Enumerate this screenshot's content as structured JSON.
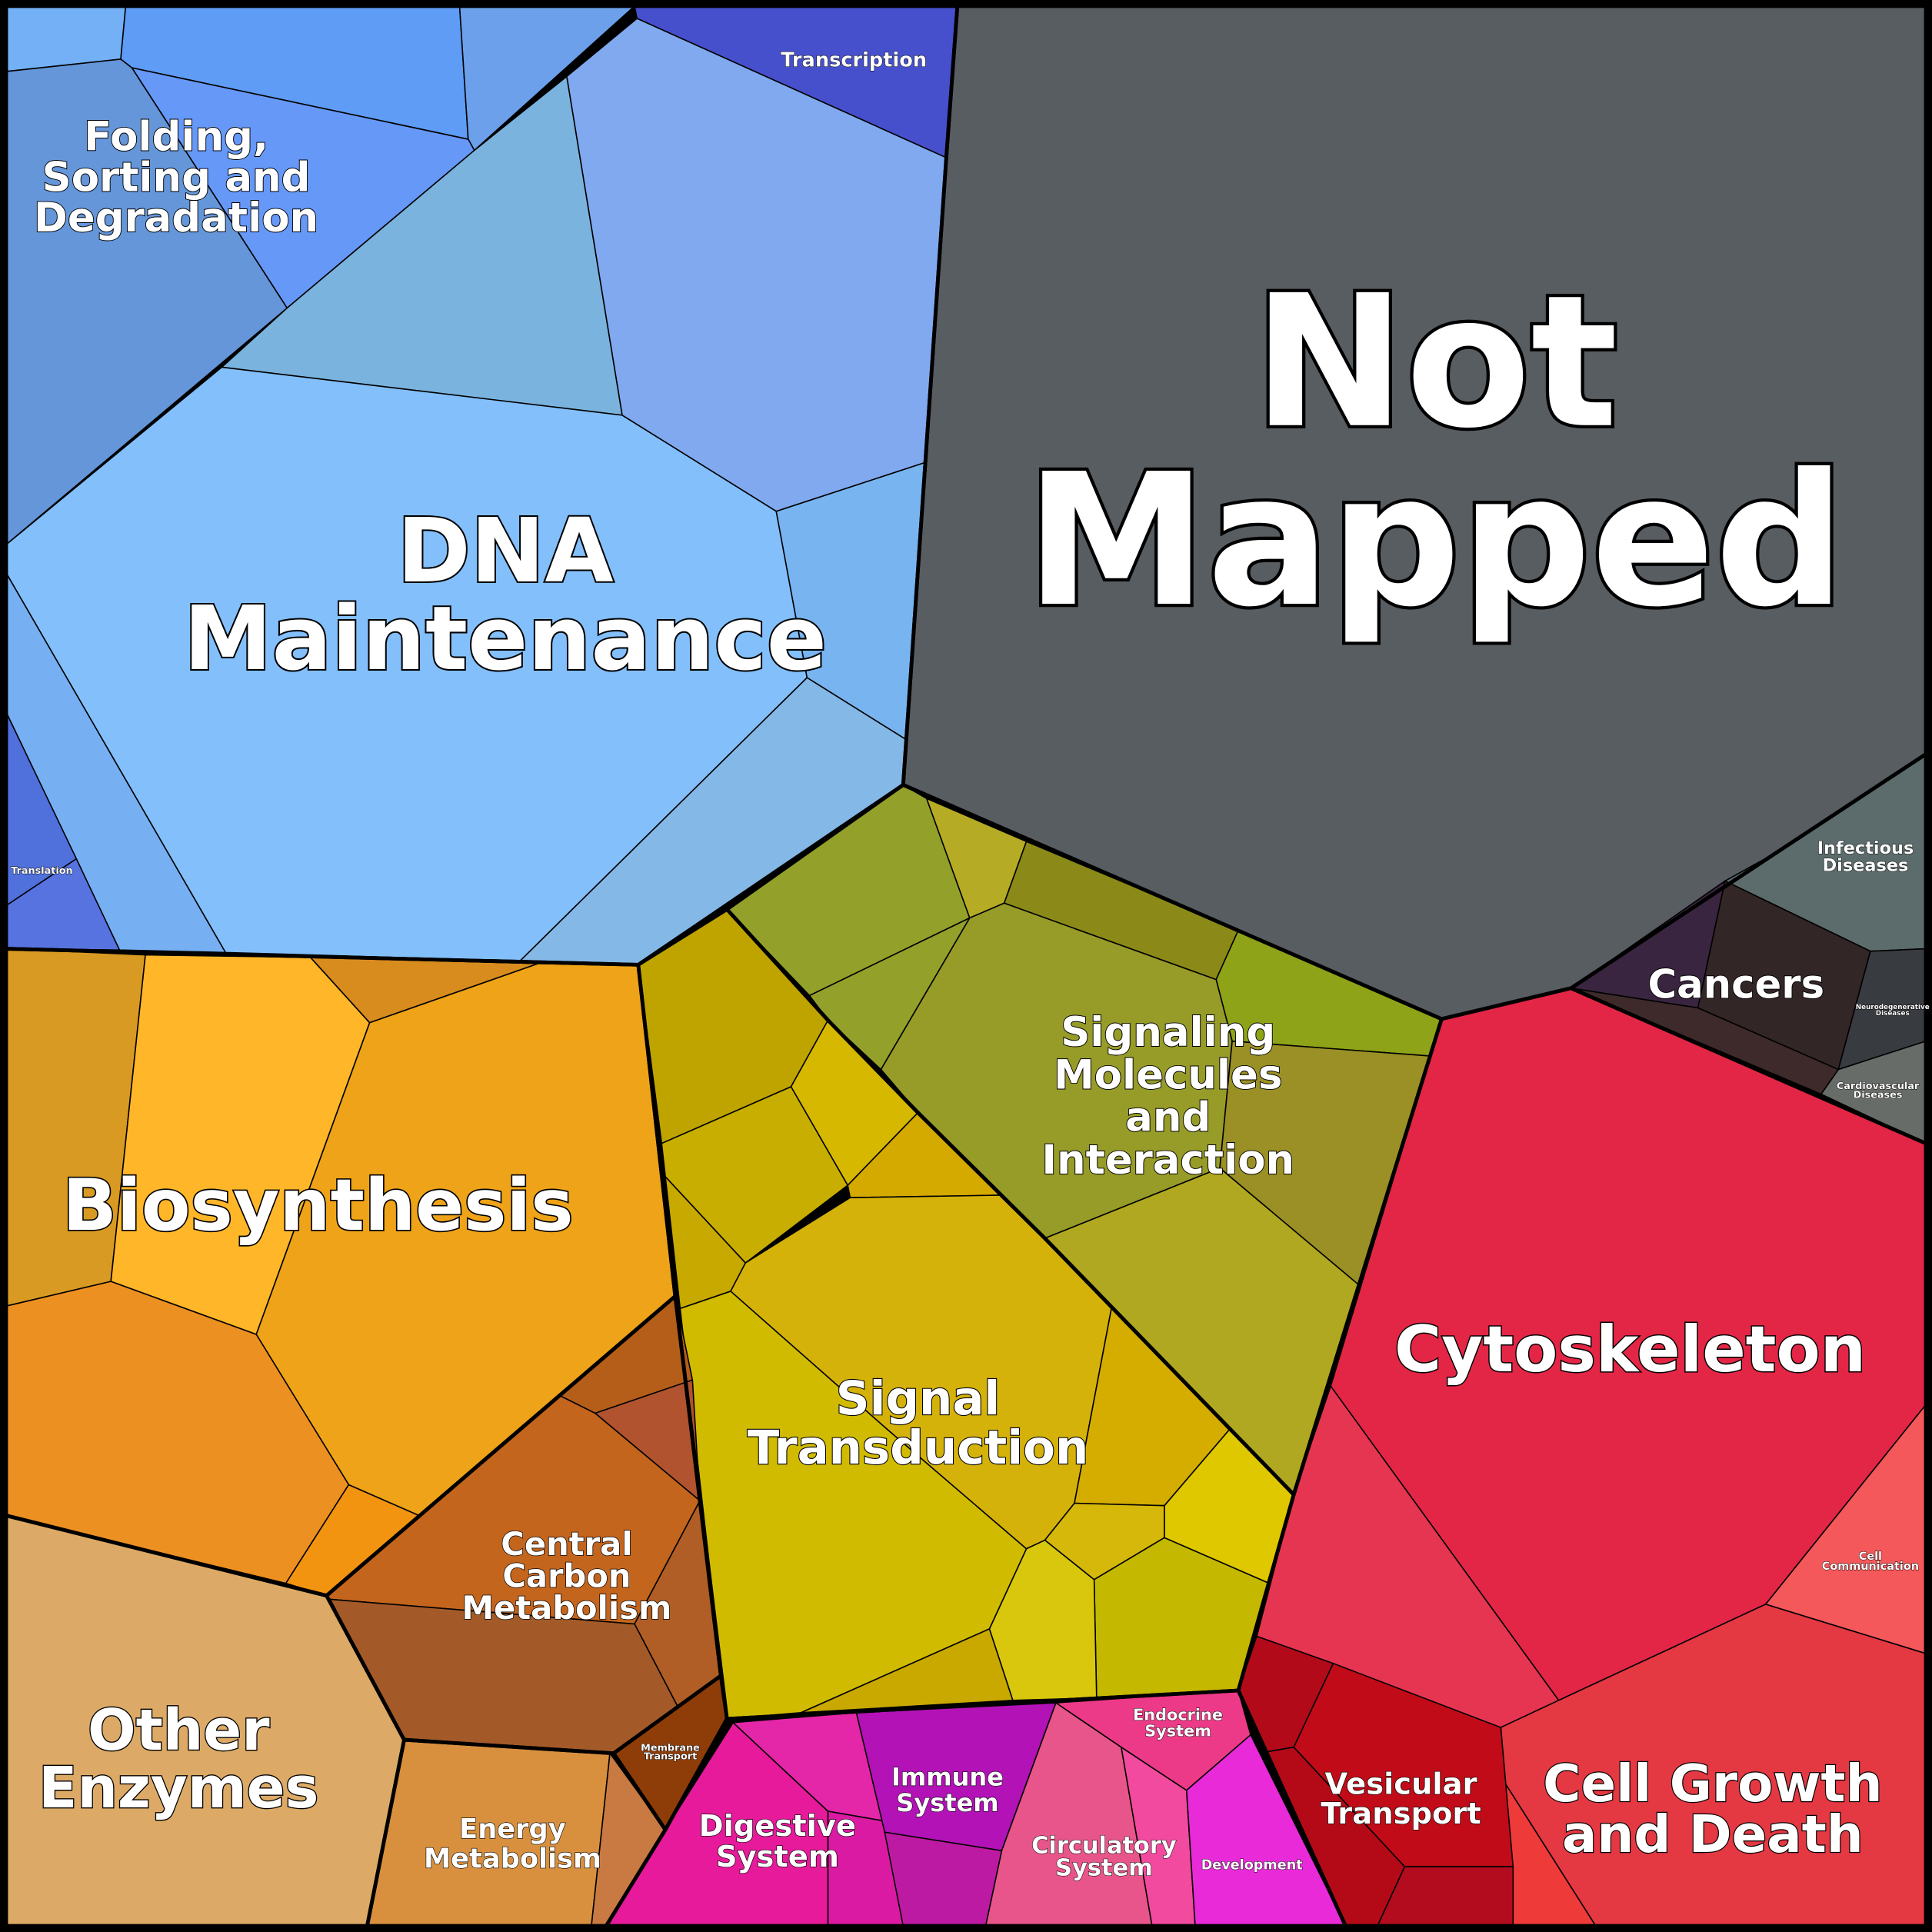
{
  "chart_data": {
    "type": "treemap",
    "layout": "voronoi",
    "cells": [
      {
        "id": "not-mapped",
        "label_lines": [
          "Not",
          "Mapped"
        ]
      },
      {
        "id": "dna-maintenance",
        "label_lines": [
          "DNA",
          "Maintenance"
        ]
      },
      {
        "id": "folding",
        "label_lines": [
          "Folding,",
          "Sorting and",
          "Degradation"
        ]
      },
      {
        "id": "transcription",
        "label_lines": [
          "Transcription"
        ]
      },
      {
        "id": "translation",
        "label_lines": [
          "Translation"
        ]
      },
      {
        "id": "biosynthesis",
        "label_lines": [
          "Biosynthesis"
        ]
      },
      {
        "id": "central-carbon",
        "label_lines": [
          "Central",
          "Carbon",
          "Metabolism"
        ]
      },
      {
        "id": "other-enzymes",
        "label_lines": [
          "Other",
          "Enzymes"
        ]
      },
      {
        "id": "energy-metabolism",
        "label_lines": [
          "Energy",
          "Metabolism"
        ]
      },
      {
        "id": "membrane-transport",
        "label_lines": [
          "Membrane",
          "Transport"
        ]
      },
      {
        "id": "signal-transduction",
        "label_lines": [
          "Signal",
          "Transduction"
        ]
      },
      {
        "id": "signaling-molecules",
        "label_lines": [
          "Signaling",
          "Molecules",
          "and",
          "Interaction"
        ]
      },
      {
        "id": "cytoskeleton",
        "label_lines": [
          "Cytoskeleton"
        ]
      },
      {
        "id": "cell-growth",
        "label_lines": [
          "Cell Growth",
          "and Death"
        ]
      },
      {
        "id": "vesicular-transport",
        "label_lines": [
          "Vesicular",
          "Transport"
        ]
      },
      {
        "id": "cell-communication",
        "label_lines": [
          "Cell",
          "Communication"
        ]
      },
      {
        "id": "cancers",
        "label_lines": [
          "Cancers"
        ]
      },
      {
        "id": "infectious-diseases",
        "label_lines": [
          "Infectious",
          "Diseases"
        ]
      },
      {
        "id": "neurodegenerative-diseases",
        "label_lines": [
          "Neurodegenerative",
          "Diseases"
        ]
      },
      {
        "id": "cardiovascular-diseases",
        "label_lines": [
          "Cardiovascular",
          "Diseases"
        ]
      },
      {
        "id": "digestive-system",
        "label_lines": [
          "Digestive",
          "System"
        ]
      },
      {
        "id": "immune-system",
        "label_lines": [
          "Immune",
          "System"
        ]
      },
      {
        "id": "circulatory-system",
        "label_lines": [
          "Circulatory",
          "System"
        ]
      },
      {
        "id": "endocrine-system",
        "label_lines": [
          "Endocrine",
          "System"
        ]
      },
      {
        "id": "development",
        "label_lines": [
          "Development"
        ]
      }
    ]
  }
}
